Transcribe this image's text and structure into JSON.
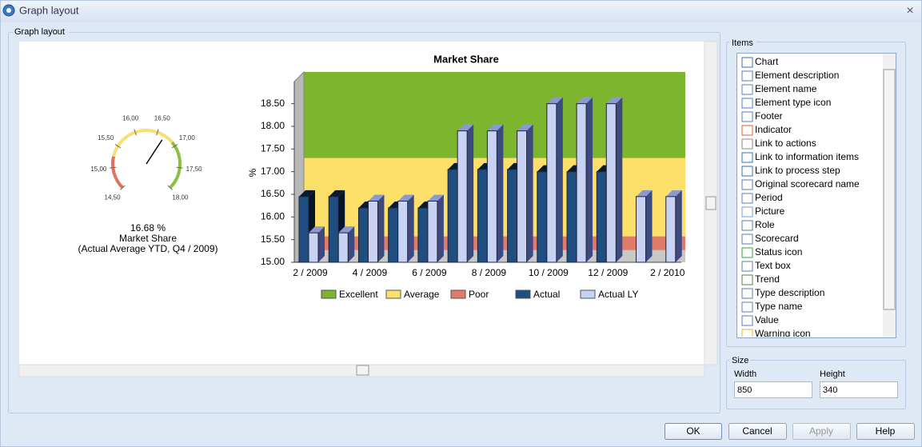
{
  "window": {
    "title": "Graph layout",
    "close": "×"
  },
  "group": {
    "title": "Graph layout"
  },
  "gauge": {
    "value": 16.68,
    "value_label": "16.68 %",
    "caption": "Market Share",
    "subcaption": "(Actual Average YTD, Q4 / 2009)",
    "ticks": [
      {
        "value": 14.5,
        "label": "14,50"
      },
      {
        "value": 15,
        "label": "15,00"
      },
      {
        "value": 15.5,
        "label": "15,50"
      },
      {
        "value": 16,
        "label": "16,00"
      },
      {
        "value": 16.5,
        "label": "16,50"
      },
      {
        "value": 17,
        "label": "17,00"
      },
      {
        "value": 17.5,
        "label": "17,50"
      },
      {
        "value": 18,
        "label": "18,00"
      }
    ],
    "ranges": [
      {
        "from": 14.5,
        "to": 15.25,
        "color": "#e07060"
      },
      {
        "from": 15.25,
        "to": 16.9,
        "color": "#f5e070"
      },
      {
        "from": 16.9,
        "to": 18,
        "color": "#8cc040"
      }
    ]
  },
  "chart_data": {
    "type": "bar",
    "title": "Market Share",
    "y_label": "%",
    "categories": [
      "2 / 2009",
      null,
      "4 / 2009",
      null,
      "6 / 2009",
      null,
      "8 / 2009",
      null,
      "10 / 2009",
      null,
      "12 / 2009",
      null,
      "2 / 2010"
    ],
    "series": [
      {
        "name": "Actual",
        "color": "#1f4e80",
        "values": [
          16.45,
          16.45,
          16.2,
          16.2,
          16.2,
          17.05,
          17.05,
          17.05,
          17.0,
          17.0,
          17.0,
          null,
          null
        ]
      },
      {
        "name": "Actual LY",
        "color": "#c8d2f2",
        "values": [
          15.65,
          15.65,
          16.35,
          16.35,
          16.35,
          17.9,
          17.9,
          17.9,
          18.5,
          18.5,
          18.5,
          16.45,
          16.45
        ]
      }
    ],
    "bands": [
      {
        "name": "Excellent",
        "color": "#7db52e",
        "from": 17.3,
        "to": 19.2
      },
      {
        "name": "Average",
        "color": "#fde06a",
        "from": 15.57,
        "to": 17.3
      },
      {
        "name": "Poor",
        "color": "#e07a6a",
        "from": 15.27,
        "to": 15.57
      }
    ],
    "ylim": [
      15,
      19.2
    ],
    "yticks": [
      {
        "value": 15,
        "label": "15.00"
      },
      {
        "value": 15.5,
        "label": "15.50"
      },
      {
        "value": 16,
        "label": "16.00"
      },
      {
        "value": 16.5,
        "label": "16.50"
      },
      {
        "value": 17,
        "label": "17.00"
      },
      {
        "value": 17.5,
        "label": "17.50"
      },
      {
        "value": 18,
        "label": "18.00"
      },
      {
        "value": 18.5,
        "label": "18.50"
      }
    ]
  },
  "items": {
    "title": "Items",
    "list": [
      "Chart",
      "Element description",
      "Element name",
      "Element type icon",
      "Footer",
      "Indicator",
      "Link to actions",
      "Link to information items",
      "Link to process step",
      "Original scorecard name",
      "Period",
      "Picture",
      "Role",
      "Scorecard",
      "Status icon",
      "Text box",
      "Trend",
      "Type description",
      "Type name",
      "Value",
      "Warning icon"
    ]
  },
  "size": {
    "title": "Size",
    "width_label": "Width",
    "height_label": "Height",
    "width": 850,
    "height": 340
  },
  "buttons": {
    "ok": "OK",
    "cancel": "Cancel",
    "apply": "Apply",
    "help": "Help"
  }
}
